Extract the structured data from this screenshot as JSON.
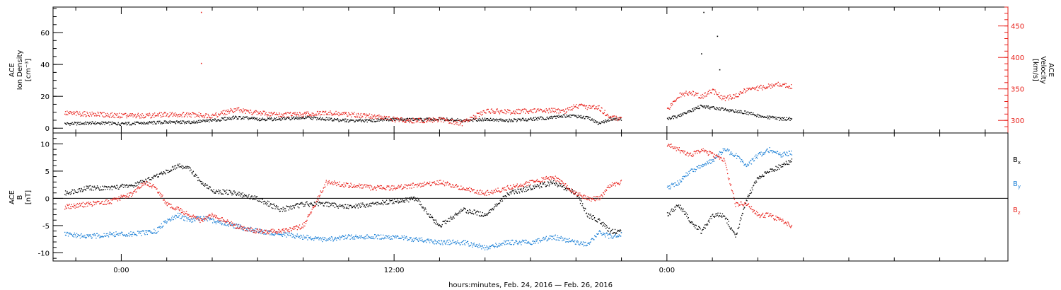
{
  "time_axis": {
    "title": "hours:minutes, Feb. 24, 2016 — Feb. 26, 2016",
    "range_hours": [
      -3,
      39
    ],
    "tick_labels": [
      {
        "hour": 0,
        "label": "0:00"
      },
      {
        "hour": 12,
        "label": "12:00"
      },
      {
        "hour": 24,
        "label": "0:00"
      }
    ],
    "minor_tick_hours": [
      -2,
      2,
      4,
      6,
      8,
      10,
      14,
      16,
      18,
      20,
      22,
      26,
      28,
      30,
      32,
      34,
      36,
      38
    ]
  },
  "colors": {
    "black": "#000000",
    "red": "#e8201a",
    "blue": "#1a7fd6",
    "frame": "#000000"
  },
  "chart_data": [
    {
      "type": "scatter",
      "panel": "top",
      "left_axis": {
        "label_lines": [
          "ACE",
          "Ion Density",
          "[cm⁻³]"
        ],
        "range": [
          -3,
          76
        ],
        "ticks": [
          0,
          20,
          40,
          60
        ],
        "minor_step": 5
      },
      "right_axis": {
        "label_lines": [
          "ACE",
          "Velocity",
          "[km/s]"
        ],
        "range": [
          280,
          480
        ],
        "ticks": [
          300,
          350,
          400,
          450
        ],
        "minor_step": 10,
        "color": "#e8201a"
      },
      "series": [
        {
          "color": "black",
          "axis": "left",
          "x": [
            -2.5,
            -1,
            0,
            1,
            2,
            3,
            4,
            5,
            6,
            7,
            8,
            9,
            10,
            11,
            12,
            13,
            14,
            15,
            16,
            17,
            18,
            19,
            19.5,
            20,
            20.5,
            21,
            21.5,
            22,
            24,
            24.5,
            25,
            25.5,
            26,
            26.5,
            27,
            27.5,
            28,
            28.5,
            29,
            29.5
          ],
          "y": [
            3,
            3.5,
            3,
            3.5,
            4,
            4,
            5,
            7,
            6,
            6,
            7,
            6,
            5,
            5,
            6,
            5.5,
            6,
            5,
            6,
            5,
            6,
            7,
            8,
            7.5,
            7,
            3,
            6,
            6,
            6,
            8,
            11,
            14,
            13,
            12,
            11,
            10,
            8,
            7,
            6,
            6
          ]
        },
        {
          "color": "red",
          "axis": "right",
          "x": [
            -2.5,
            -1,
            0,
            1,
            2,
            3,
            4,
            5,
            6,
            7,
            8,
            9,
            10,
            11,
            12,
            13,
            14,
            15,
            16,
            17,
            18,
            19,
            19.5,
            20,
            20.5,
            21,
            21.5,
            22,
            24,
            24.5,
            25,
            25.5,
            26,
            26.5,
            27,
            27.5,
            28,
            28.5,
            29,
            29.5
          ],
          "y": [
            312,
            310,
            308,
            308,
            310,
            310,
            308,
            318,
            312,
            310,
            310,
            312,
            310,
            308,
            302,
            300,
            302,
            296,
            316,
            314,
            316,
            316,
            315,
            324,
            322,
            320,
            306,
            302,
            318,
            340,
            345,
            338,
            348,
            335,
            340,
            350,
            352,
            355,
            358,
            355
          ]
        }
      ],
      "outliers": [
        {
          "x": 3.5,
          "y": 73,
          "axis": "left",
          "color": "red"
        },
        {
          "x": 3.5,
          "y": 41,
          "axis": "left",
          "color": "red"
        },
        {
          "x": 25.6,
          "y": 73,
          "axis": "left",
          "color": "black"
        },
        {
          "x": 26.2,
          "y": 58,
          "axis": "left",
          "color": "black"
        },
        {
          "x": 25.5,
          "y": 47,
          "axis": "left",
          "color": "black"
        },
        {
          "x": 26.3,
          "y": 37,
          "axis": "left",
          "color": "black"
        }
      ]
    },
    {
      "type": "scatter",
      "panel": "bottom",
      "left_axis": {
        "label_lines": [
          "ACE",
          "B",
          "[nT]"
        ],
        "range": [
          -11.5,
          12
        ],
        "ticks": [
          -10,
          -5,
          0,
          5,
          10
        ],
        "minor_step": 1
      },
      "zero_line": true,
      "legend": [
        {
          "label": "B",
          "sub": "x",
          "color": "black"
        },
        {
          "label": "B",
          "sub": "y",
          "color": "blue"
        },
        {
          "label": "B",
          "sub": "z",
          "color": "red"
        }
      ],
      "series": [
        {
          "name": "Bx",
          "color": "black",
          "x": [
            -2.5,
            -1.5,
            -0.5,
            0.5,
            1.5,
            2,
            2.5,
            3,
            3.5,
            4,
            5,
            6,
            7,
            8,
            9,
            10,
            11,
            12,
            13,
            13.5,
            14,
            15,
            16,
            16.5,
            17,
            18,
            19,
            20,
            20.5,
            21,
            21.5,
            22,
            24,
            24.5,
            25,
            25.5,
            26,
            26.5,
            27,
            27.5,
            28,
            28.5,
            29,
            29.5
          ],
          "y": [
            1,
            2,
            2,
            2.5,
            4,
            5,
            6,
            5.5,
            3,
            1.5,
            1,
            0,
            -2,
            -1,
            -1,
            -1.5,
            -1,
            -0.5,
            0,
            -3,
            -5,
            -2,
            -3,
            -1,
            1,
            2,
            3,
            1,
            -3,
            -4,
            -6,
            -6,
            -3,
            -1,
            -4,
            -6,
            -3,
            -3,
            -7,
            0,
            4,
            5,
            6,
            7
          ]
        },
        {
          "name": "By",
          "color": "blue",
          "x": [
            -2.5,
            -1.5,
            -0.5,
            0.5,
            1.5,
            2,
            2.5,
            3,
            3.5,
            4,
            5,
            6,
            7,
            8,
            9,
            10,
            11,
            12,
            13,
            14,
            15,
            16,
            17,
            18,
            19,
            20,
            20.5,
            21,
            21.5,
            22,
            24,
            24.5,
            25,
            25.5,
            26,
            26.5,
            27,
            27.5,
            28,
            28.5,
            29,
            29.5
          ],
          "y": [
            -6.5,
            -7,
            -6.5,
            -6.5,
            -6,
            -4,
            -3,
            -4,
            -3.5,
            -4,
            -5,
            -6,
            -6.5,
            -7,
            -7.5,
            -7,
            -7,
            -7,
            -7.5,
            -8,
            -8,
            -9,
            -8,
            -8,
            -7,
            -8,
            -8.5,
            -6,
            -7,
            -6.5,
            2,
            3,
            5,
            6,
            7,
            9,
            8,
            6,
            8,
            9,
            8,
            8.5
          ]
        },
        {
          "name": "Bz",
          "color": "red",
          "x": [
            -2.5,
            -1.5,
            -0.5,
            0.5,
            1,
            1.5,
            2,
            2.5,
            3,
            3.5,
            4,
            5,
            6,
            7,
            8,
            9,
            10,
            11,
            12,
            13,
            14,
            15,
            16,
            17,
            18,
            19,
            20,
            20.5,
            21,
            21.5,
            22,
            24,
            24.5,
            25,
            25.5,
            26,
            26.5,
            27,
            27.5,
            28,
            28.5,
            29,
            29.5
          ],
          "y": [
            -1.5,
            -1,
            -0.5,
            1,
            3,
            2,
            -1,
            -2,
            -3,
            -4,
            -3,
            -5,
            -6,
            -6,
            -5,
            3,
            2.5,
            2,
            2,
            2.5,
            3,
            2,
            1,
            2,
            3,
            4,
            1,
            0,
            0,
            2.5,
            3,
            10,
            9,
            8,
            9,
            8,
            7,
            -1,
            -1,
            -3,
            -3,
            -4,
            -5
          ]
        }
      ]
    }
  ]
}
